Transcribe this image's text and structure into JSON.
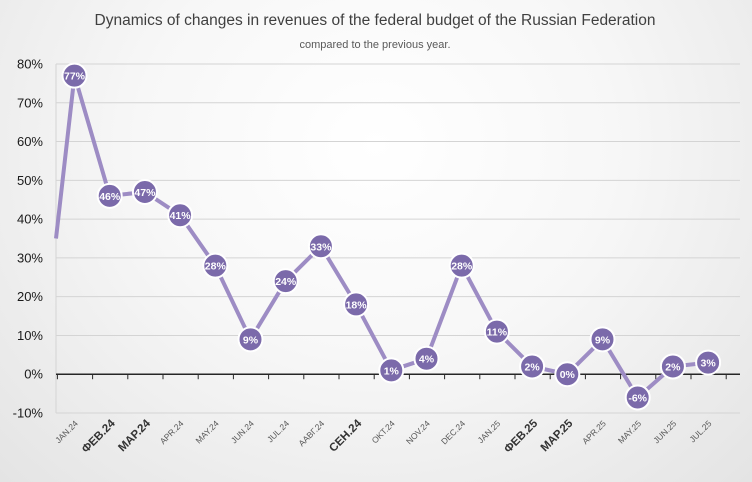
{
  "chart_data": {
    "type": "line",
    "title": "Dynamics of changes in revenues of the federal budget of the Russian Federation",
    "subtitle": "compared to the previous year.",
    "xlabel": "",
    "ylabel": "",
    "ylim": [
      -10,
      80
    ],
    "y_ticks": [
      "80%",
      "70%",
      "60%",
      "50%",
      "40%",
      "30%",
      "20%",
      "10%",
      "0%",
      "-10%"
    ],
    "y_tick_values": [
      80,
      70,
      60,
      50,
      40,
      30,
      20,
      10,
      0,
      -10
    ],
    "grid": true,
    "categories": [
      "JAN.24",
      "ФЕВ.24",
      "МАР.24",
      "APR.24",
      "MAY.24",
      "JUN.24",
      "JUL.24",
      "AABГ.24",
      "СЕН.24",
      "OKT.24",
      "NOV.24",
      "DEC.24",
      "JAN.25",
      "ФЕВ.25",
      "МАР.25",
      "APR.25",
      "MAY.25",
      "JUN.25",
      "JUL.25"
    ],
    "category_emphasis": [
      false,
      true,
      true,
      false,
      false,
      false,
      false,
      false,
      true,
      false,
      false,
      false,
      false,
      true,
      true,
      false,
      false,
      false,
      false
    ],
    "series": [
      {
        "values": [
          77,
          46,
          47,
          41,
          28,
          9,
          24,
          33,
          18,
          1,
          4,
          28,
          11,
          2,
          0,
          9,
          -6,
          2,
          3
        ],
        "labels": [
          "77%",
          "46%",
          "47%",
          "41%",
          "28%",
          "9%",
          "24%",
          "33%",
          "18%",
          "1%",
          "4%",
          "28%",
          "11%",
          "2%",
          "0%",
          "9%",
          "-6%",
          "2%",
          "3%"
        ],
        "line_start_value": 35,
        "color": "#9d8cc4",
        "marker_color": "#7b6aaa",
        "marker_edge": "#ffffff"
      }
    ]
  }
}
